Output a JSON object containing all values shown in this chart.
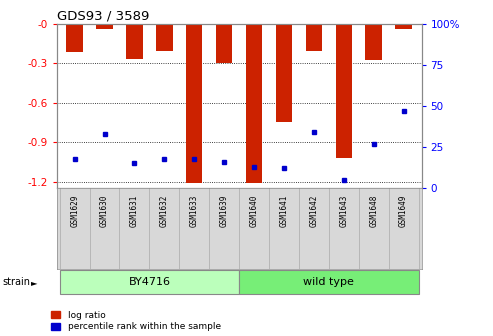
{
  "title": "GDS93 / 3589",
  "samples": [
    "GSM1629",
    "GSM1630",
    "GSM1631",
    "GSM1632",
    "GSM1633",
    "GSM1639",
    "GSM1640",
    "GSM1641",
    "GSM1642",
    "GSM1643",
    "GSM1648",
    "GSM1649"
  ],
  "log_ratios": [
    -0.22,
    -0.04,
    -0.27,
    -0.21,
    -1.21,
    -0.3,
    -1.21,
    -0.75,
    -0.21,
    -1.02,
    -0.28,
    -0.04
  ],
  "percentile_ranks": [
    18,
    33,
    15,
    18,
    18,
    16,
    13,
    12,
    34,
    5,
    27,
    47
  ],
  "strain_groups": [
    {
      "label": "BY4716",
      "start": 0,
      "end": 5,
      "color": "#aaffaa"
    },
    {
      "label": "wild type",
      "start": 6,
      "end": 11,
      "color": "#66ee66"
    }
  ],
  "bar_color": "#cc2200",
  "percentile_color": "#0000cc",
  "ylim_min": -1.25,
  "ylim_max": 0.0,
  "y_ticks": [
    0,
    -0.3,
    -0.6,
    -0.9,
    -1.2
  ],
  "y_tick_labels": [
    "-0",
    "-0.3",
    "-0.6",
    "-0.9",
    "-1.2"
  ],
  "right_y_ticks": [
    0,
    25,
    50,
    75,
    100
  ],
  "right_y_tick_labels": [
    "0",
    "25",
    "50",
    "75",
    "100%"
  ],
  "legend_log_ratio": "log ratio",
  "legend_percentile": "percentile rank within the sample",
  "strain_label": "strain",
  "by_color": "#bbffbb",
  "wt_color": "#77ee77"
}
